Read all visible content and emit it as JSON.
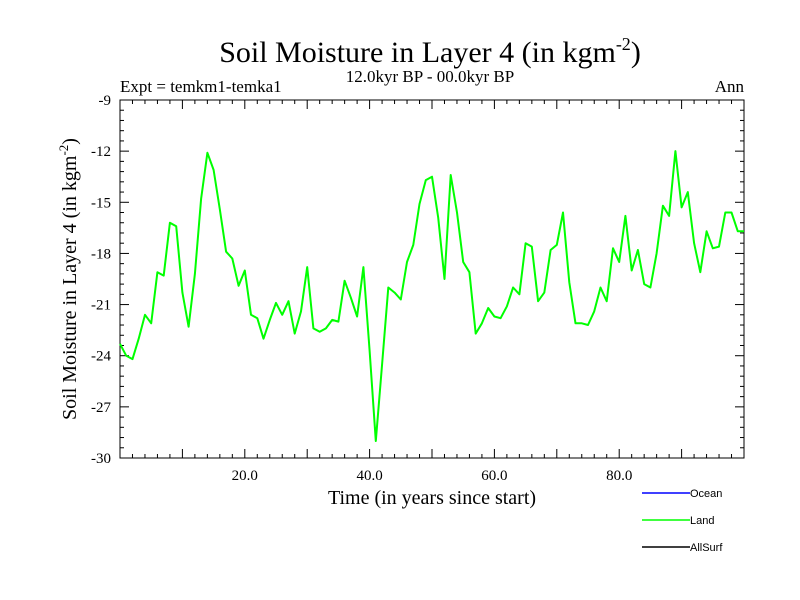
{
  "chart_data": {
    "type": "line",
    "title": "Soil Moisture in Layer 4 (in kgm",
    "title_sup": "-2",
    "title_end": ")",
    "subtitle": "12.0kyr BP - 00.0kyr BP",
    "left_note": "Expt = temkm1-temka1",
    "right_note": "Ann",
    "xlabel": "Time (in years since start)",
    "ylabel": "Soil Moisture in Layer 4 (in kgm",
    "ylabel_sup": "-2",
    "ylabel_end": ")",
    "xlim": [
      0,
      100
    ],
    "ylim": [
      -30,
      -9
    ],
    "xticks": [
      20,
      40,
      60,
      80
    ],
    "xtick_labels": [
      "20.0",
      "40.0",
      "60.0",
      "80.0"
    ],
    "yticks": [
      -30,
      -27,
      -24,
      -21,
      -18,
      -15,
      -12,
      -9
    ],
    "ytick_labels": [
      "-30",
      "-27",
      "-24",
      "-21",
      "-18",
      "-15",
      "-12",
      "-9"
    ],
    "grid": false,
    "legend_position": "bottom-right, outside plot",
    "series": [
      {
        "name": "Ocean",
        "color": "#0000ff",
        "values": []
      },
      {
        "name": "Land",
        "color": "#00ff00",
        "x": [
          0,
          1,
          2,
          3,
          4,
          5,
          6,
          7,
          8,
          9,
          10,
          11,
          12,
          13,
          14,
          15,
          16,
          17,
          18,
          19,
          20,
          21,
          22,
          23,
          24,
          25,
          26,
          27,
          28,
          29,
          30,
          31,
          32,
          33,
          34,
          35,
          36,
          37,
          38,
          39,
          40,
          41,
          42,
          43,
          44,
          45,
          46,
          47,
          48,
          49,
          50,
          51,
          52,
          53,
          54,
          55,
          56,
          57,
          58,
          59,
          60,
          61,
          62,
          63,
          64,
          65,
          66,
          67,
          68,
          69,
          70,
          71,
          72,
          73,
          74,
          75,
          76,
          77,
          78,
          79,
          80,
          81,
          82,
          83,
          84,
          85,
          86,
          87,
          88,
          89,
          90,
          91,
          92,
          93,
          94,
          95,
          96,
          97,
          98,
          99,
          100
        ],
        "values": [
          -23.3,
          -24.0,
          -24.2,
          -23.0,
          -21.6,
          -22.1,
          -19.1,
          -19.3,
          -16.2,
          -16.4,
          -20.3,
          -22.3,
          -19.2,
          -14.8,
          -12.1,
          -13.1,
          -15.4,
          -17.9,
          -18.3,
          -19.9,
          -19.0,
          -21.6,
          -21.8,
          -23.0,
          -21.9,
          -20.9,
          -21.6,
          -20.8,
          -22.7,
          -21.4,
          -18.8,
          -22.4,
          -22.6,
          -22.4,
          -21.9,
          -22.0,
          -19.6,
          -20.6,
          -21.7,
          -18.8,
          -23.7,
          -29.0,
          -24.5,
          -20.0,
          -20.3,
          -20.7,
          -18.5,
          -17.5,
          -15.1,
          -13.7,
          -13.5,
          -15.9,
          -19.5,
          -13.4,
          -15.6,
          -18.5,
          -19.1,
          -22.7,
          -22.1,
          -21.2,
          -21.7,
          -21.8,
          -21.1,
          -20.0,
          -20.4,
          -17.4,
          -17.6,
          -20.8,
          -20.3,
          -17.8,
          -17.5,
          -15.6,
          -19.7,
          -22.1,
          -22.1,
          -22.2,
          -21.4,
          -20.0,
          -20.8,
          -17.7,
          -18.5,
          -15.8,
          -19.0,
          -17.8,
          -19.8,
          -20.0,
          -18.0,
          -15.2,
          -15.8,
          -12.0,
          -15.3,
          -14.4,
          -17.4,
          -19.1,
          -16.7,
          -17.7,
          -17.6,
          -15.6,
          -15.6,
          -16.7,
          -16.7
        ]
      },
      {
        "name": "AllSurf",
        "color": "#000000",
        "values": []
      }
    ]
  }
}
